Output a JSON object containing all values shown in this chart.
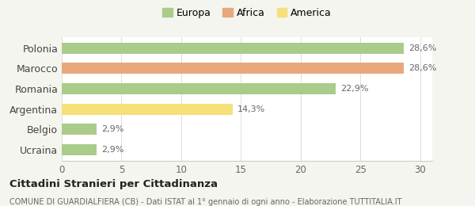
{
  "categories": [
    "Ucraina",
    "Belgio",
    "Argentina",
    "Romania",
    "Marocco",
    "Polonia"
  ],
  "values": [
    2.9,
    2.9,
    14.3,
    22.9,
    28.6,
    28.6
  ],
  "labels": [
    "2,9%",
    "2,9%",
    "14,3%",
    "22,9%",
    "28,6%",
    "28,6%"
  ],
  "colors": [
    "#aacb8a",
    "#aacb8a",
    "#f5e07a",
    "#aacb8a",
    "#e8a87c",
    "#aacb8a"
  ],
  "legend_items": [
    {
      "label": "Europa",
      "color": "#aacb8a"
    },
    {
      "label": "Africa",
      "color": "#e8a87c"
    },
    {
      "label": "America",
      "color": "#f5e07a"
    }
  ],
  "xlim": [
    0,
    31
  ],
  "xticks": [
    0,
    5,
    10,
    15,
    20,
    25,
    30
  ],
  "title": "Cittadini Stranieri per Cittadinanza",
  "subtitle": "COMUNE DI GUARDIALFIERA (CB) - Dati ISTAT al 1° gennaio di ogni anno - Elaborazione TUTTITALIA.IT",
  "background_color": "#f5f5f0",
  "plot_background": "#ffffff",
  "bar_height": 0.55,
  "label_fontsize": 8,
  "ytick_fontsize": 9,
  "xtick_fontsize": 8.5
}
